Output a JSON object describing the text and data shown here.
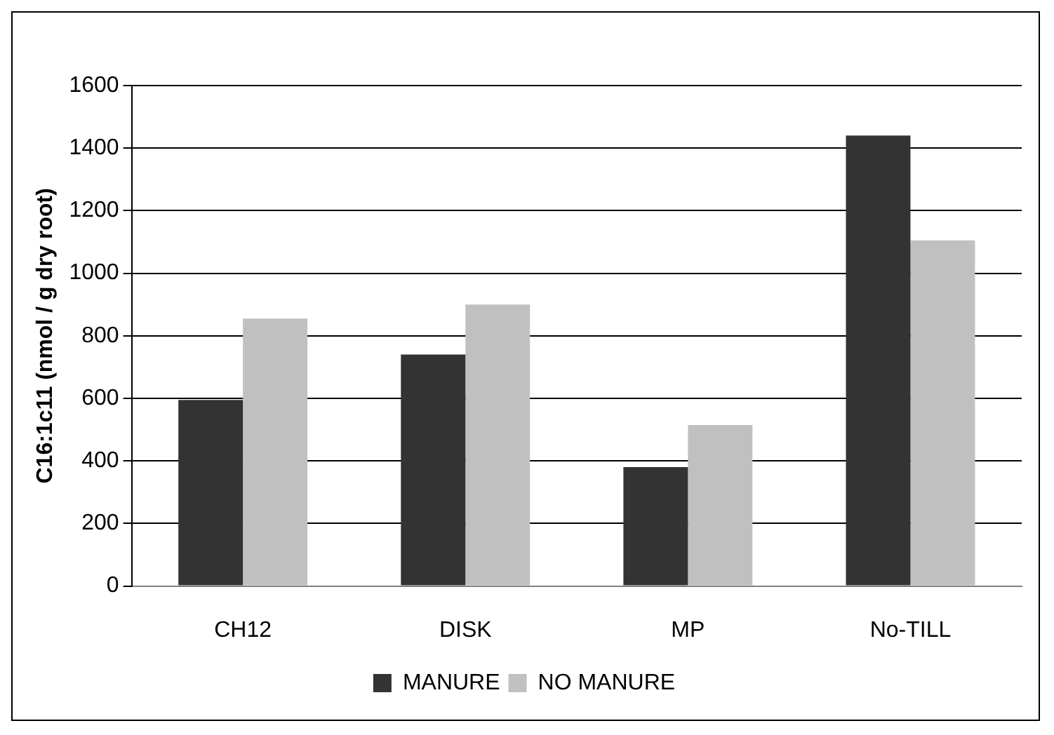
{
  "chart_data": {
    "type": "bar",
    "ylabel": "C16:1c11 (nmol / g dry root)",
    "categories": [
      "CH12",
      "DISK",
      "MP",
      "No-TILL"
    ],
    "series": [
      {
        "name": "MANURE",
        "color": "#333333",
        "values": [
          595,
          740,
          380,
          1440
        ]
      },
      {
        "name": "NO MANURE",
        "color": "#c0c0c0",
        "values": [
          855,
          900,
          515,
          1105
        ]
      }
    ],
    "ylim": [
      0,
      1600
    ],
    "yticks": [
      0,
      200,
      400,
      600,
      800,
      1000,
      1200,
      1400,
      1600
    ],
    "grid": "y",
    "legend": "bottom"
  }
}
